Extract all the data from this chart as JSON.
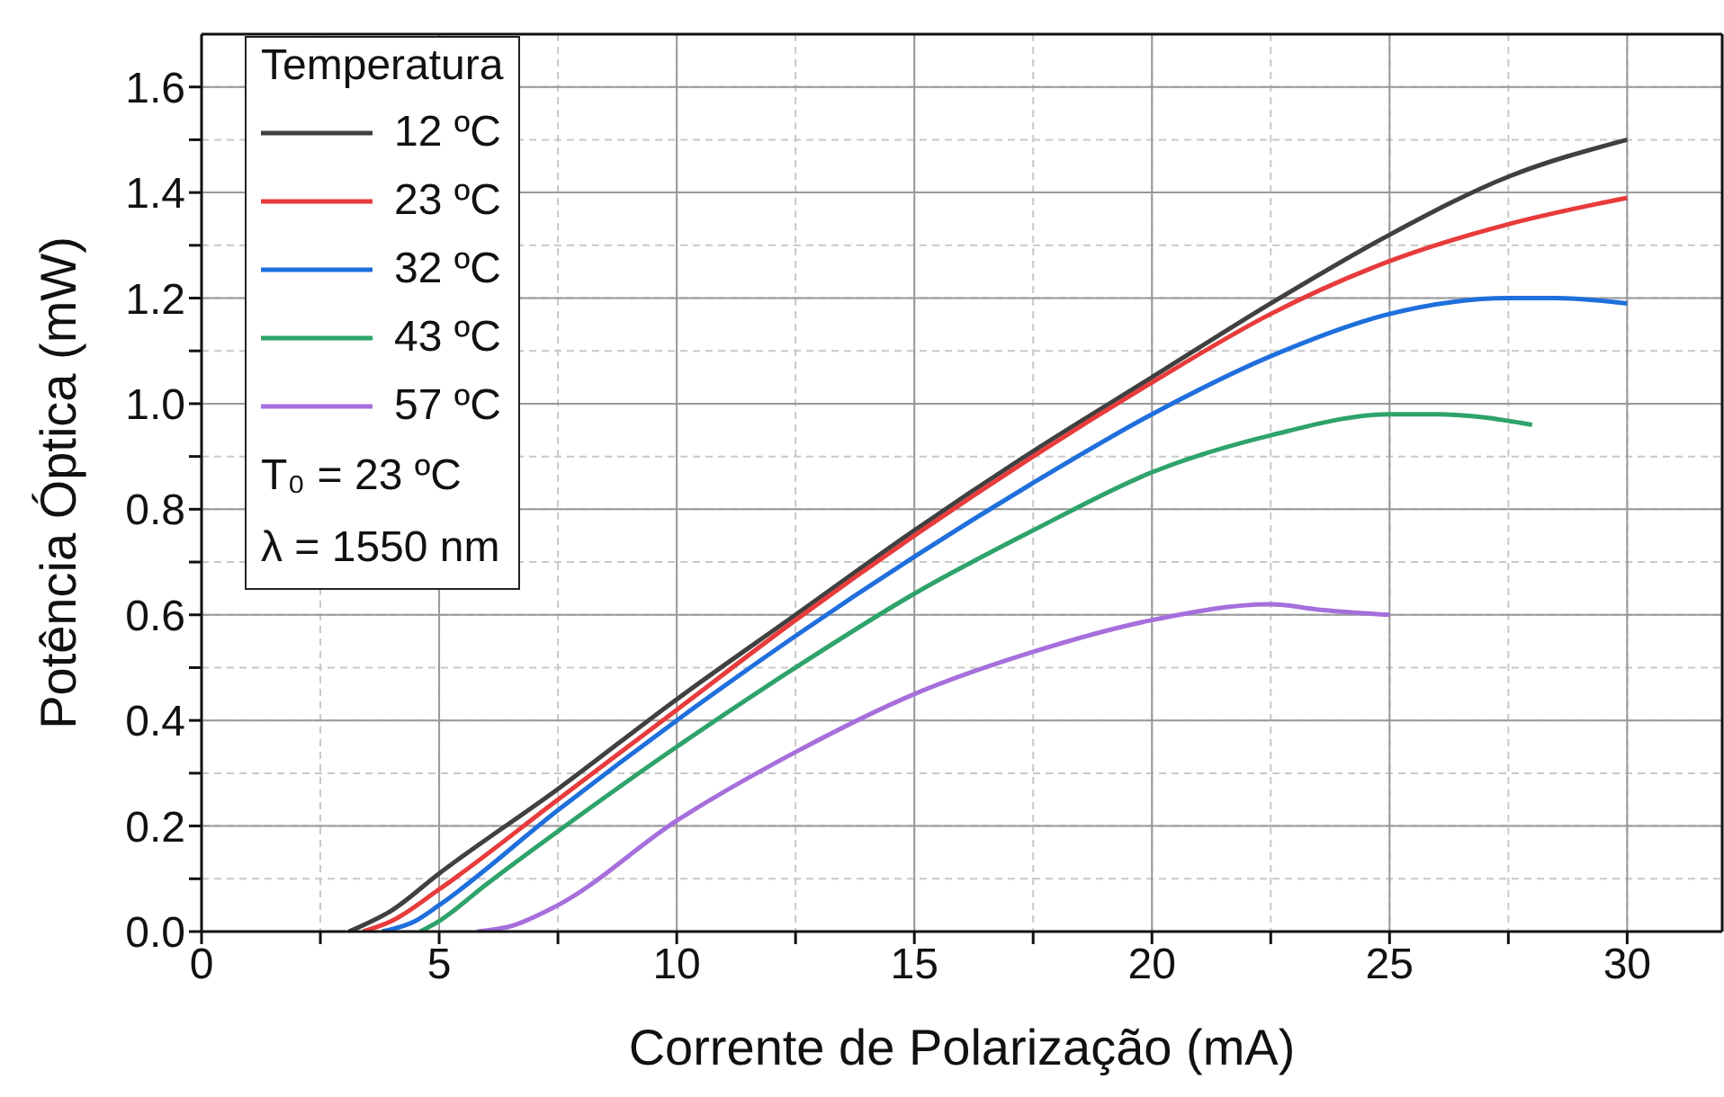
{
  "chart_data": {
    "type": "line",
    "xlabel": "Corrente de Polarização (mA)",
    "ylabel": "Potência Óptica (mW)",
    "legend_title": "Temperatura",
    "legend": "top left",
    "grid": true,
    "marker": "none",
    "line_style": "solid",
    "xlim": [
      0,
      32
    ],
    "ylim": [
      0,
      1.7
    ],
    "xticks": [
      0,
      {
        "value": 2.5,
        "label": null
      },
      5,
      {
        "value": 7.5,
        "label": null
      },
      10,
      {
        "value": 12.5,
        "label": null
      },
      15,
      {
        "value": 17.5,
        "label": null
      },
      20,
      {
        "value": 22.5,
        "label": null
      },
      25,
      {
        "value": 27.5,
        "label": null
      },
      30
    ],
    "yticks": [
      {
        "value": 0,
        "label": "0.0"
      },
      {
        "value": 0.1,
        "label": null
      },
      {
        "value": 0.2,
        "label": "0.2"
      },
      {
        "value": 0.3,
        "label": null
      },
      {
        "value": 0.4,
        "label": "0.4"
      },
      {
        "value": 0.5,
        "label": null
      },
      {
        "value": 0.6,
        "label": "0.6"
      },
      {
        "value": 0.7,
        "label": null
      },
      {
        "value": 0.8,
        "label": "0.8"
      },
      {
        "value": 0.9,
        "label": null
      },
      {
        "value": 1.0,
        "label": "1.0"
      },
      {
        "value": 1.1,
        "label": null
      },
      {
        "value": 1.2,
        "label": "1.2"
      },
      {
        "value": 1.3,
        "label": null
      },
      {
        "value": 1.4,
        "label": "1.4"
      },
      {
        "value": 1.5,
        "label": null
      },
      {
        "value": 1.6,
        "label": "1.6"
      }
    ],
    "annotations": [
      "T₀ = 23 ºC",
      "λ = 1550 nm"
    ],
    "series": [
      {
        "name": "12 ºC",
        "color": "#404040",
        "x": [
          3.1,
          4,
          5,
          7.5,
          10,
          12.5,
          15,
          17.5,
          20,
          22.5,
          25,
          27.5,
          30
        ],
        "values": [
          0,
          0.04,
          0.11,
          0.27,
          0.44,
          0.6,
          0.76,
          0.91,
          1.05,
          1.19,
          1.32,
          1.43,
          1.5
        ]
      },
      {
        "name": "23 ºC",
        "color": "#e83b3b",
        "x": [
          3.4,
          4,
          5,
          7.5,
          10,
          12.5,
          15,
          17.5,
          20,
          22.5,
          25,
          27.5,
          30
        ],
        "values": [
          0,
          0.02,
          0.08,
          0.25,
          0.42,
          0.59,
          0.75,
          0.9,
          1.04,
          1.17,
          1.27,
          1.34,
          1.39
        ]
      },
      {
        "name": "32 ºC",
        "color": "#1f6fdc",
        "x": [
          3.8,
          4.5,
          5,
          7.5,
          10,
          12.5,
          15,
          17.5,
          20,
          22.5,
          25,
          27.5,
          28.5,
          30
        ],
        "values": [
          0,
          0.02,
          0.05,
          0.23,
          0.4,
          0.56,
          0.71,
          0.85,
          0.98,
          1.09,
          1.17,
          1.2,
          1.2,
          1.19
        ]
      },
      {
        "name": "43 ºC",
        "color": "#2ea36a",
        "x": [
          4.6,
          5,
          6,
          7.5,
          10,
          12.5,
          15,
          17.5,
          20,
          22.5,
          25,
          26,
          28
        ],
        "values": [
          0,
          0.02,
          0.09,
          0.19,
          0.35,
          0.5,
          0.64,
          0.76,
          0.87,
          0.94,
          0.98,
          0.98,
          0.96
        ]
      },
      {
        "name": "57 ºC",
        "color": "#a66fdc",
        "x": [
          5.8,
          6.5,
          7.5,
          10,
          12.5,
          15,
          17.5,
          20,
          22.5,
          23.5,
          25
        ],
        "values": [
          0,
          0.01,
          0.05,
          0.21,
          0.34,
          0.45,
          0.53,
          0.59,
          0.62,
          0.61,
          0.6
        ]
      }
    ]
  }
}
